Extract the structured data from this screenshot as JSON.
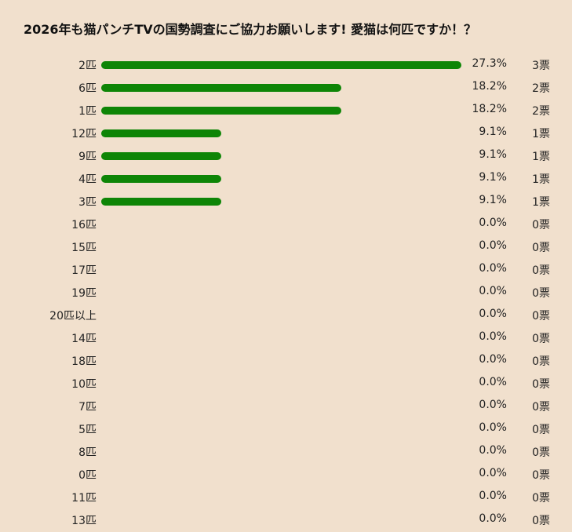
{
  "chart_data": {
    "type": "bar",
    "orientation": "horizontal",
    "title": "2026年も猫パンチTVの国勢調査にご協力お願いします! 愛猫は何匹ですか！？",
    "max_value": 27.3,
    "bar_color": "#0e8506",
    "background": "#f1e0cd",
    "categories": [
      "2匹",
      "6匹",
      "1匹",
      "12匹",
      "9匹",
      "4匹",
      "3匹",
      "16匹",
      "15匹",
      "17匹",
      "19匹",
      "20匹以上",
      "14匹",
      "18匹",
      "10匹",
      "7匹",
      "5匹",
      "8匹",
      "0匹",
      "11匹",
      "13匹"
    ],
    "percent_labels": [
      "27.3%",
      "18.2%",
      "18.2%",
      "9.1%",
      "9.1%",
      "9.1%",
      "9.1%",
      "0.0%",
      "0.0%",
      "0.0%",
      "0.0%",
      "0.0%",
      "0.0%",
      "0.0%",
      "0.0%",
      "0.0%",
      "0.0%",
      "0.0%",
      "0.0%",
      "0.0%",
      "0.0%"
    ],
    "values": [
      27.3,
      18.2,
      18.2,
      9.1,
      9.1,
      9.1,
      9.1,
      0,
      0,
      0,
      0,
      0,
      0,
      0,
      0,
      0,
      0,
      0,
      0,
      0,
      0
    ],
    "vote_labels": [
      "3票",
      "2票",
      "2票",
      "1票",
      "1票",
      "1票",
      "1票",
      "0票",
      "0票",
      "0票",
      "0票",
      "0票",
      "0票",
      "0票",
      "0票",
      "0票",
      "0票",
      "0票",
      "0票",
      "0票",
      "0票"
    ]
  }
}
